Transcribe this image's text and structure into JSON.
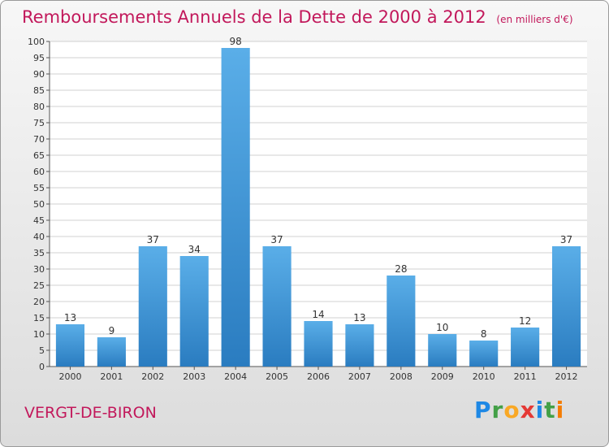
{
  "header": {
    "title": "Remboursements Annuels de la Dette de 2000 à 2012",
    "unit": "(en milliers d'€)"
  },
  "footer": {
    "commune": "VERGT-DE-BIRON",
    "logo_letters": [
      "P",
      "r",
      "o",
      "x",
      "i",
      "t",
      "i"
    ]
  },
  "colors": {
    "title": "#c2185b",
    "bar_top": "#5aaee8",
    "bar_bottom": "#2a7cc0",
    "grid": "#d0d0d0"
  },
  "chart_data": {
    "type": "bar",
    "title": "Remboursements Annuels de la Dette de 2000 à 2012",
    "subtitle": "(en milliers d'€)",
    "categories": [
      "2000",
      "2001",
      "2002",
      "2003",
      "2004",
      "2005",
      "2006",
      "2007",
      "2008",
      "2009",
      "2010",
      "2011",
      "2012"
    ],
    "values": [
      13,
      9,
      37,
      34,
      98,
      37,
      14,
      13,
      28,
      10,
      8,
      12,
      37
    ],
    "ylim": [
      0,
      100
    ],
    "yticks": [
      0,
      5,
      10,
      15,
      20,
      25,
      30,
      35,
      40,
      45,
      50,
      55,
      60,
      65,
      70,
      75,
      80,
      85,
      90,
      95,
      100
    ],
    "grid": true,
    "data_labels": true
  }
}
